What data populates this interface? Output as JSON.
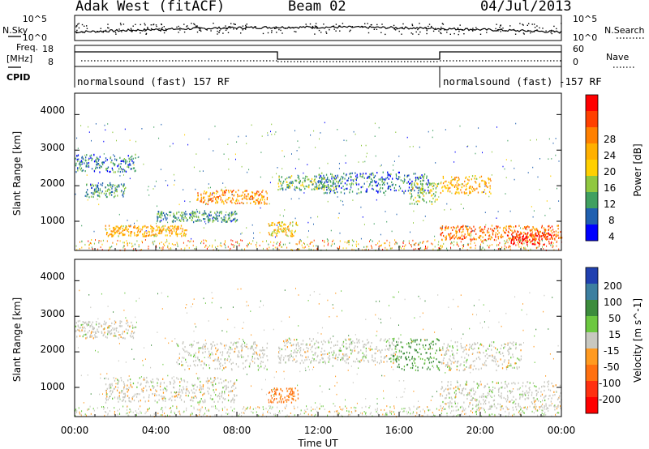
{
  "header": {
    "station": "Adak West (fitACF)",
    "beam": "Beam 02",
    "date": "04/Jul/2013"
  },
  "sky_panel": {
    "left_label": "N.Sky",
    "right_label": "N.Search",
    "left_ticks": [
      "10^5",
      "10^0"
    ],
    "right_ticks": [
      "10^5",
      "10^0"
    ]
  },
  "freq_panel": {
    "left_label_1": "Freq.",
    "left_label_2": "[MHz]",
    "left_ticks": [
      "18",
      "8"
    ],
    "right_label": "Nave",
    "right_ticks": [
      "60",
      "0"
    ],
    "cpid_label": "CPID"
  },
  "cpid_segments": [
    {
      "text": "normalsound (fast) 157 RF",
      "start": "00:00",
      "end": "18:00"
    },
    {
      "text": "normalsound (fast) -157 RF",
      "start": "18:00",
      "end": "00:00"
    }
  ],
  "time_axis": {
    "label": "Time UT",
    "ticks": [
      "00:00",
      "04:00",
      "08:00",
      "12:00",
      "16:00",
      "20:00",
      "00:00"
    ]
  },
  "chart_data": [
    {
      "type": "heatmap",
      "title": "Power",
      "xlabel": "Time UT",
      "ylabel": "Slant Range [km]",
      "yticks": [
        1000,
        2000,
        3000,
        4000
      ],
      "ylim": [
        180,
        4600
      ],
      "xlim_hours": [
        0,
        24
      ],
      "colorbar_label": "Power [dB]",
      "colorbar_ticks": [
        "28",
        "24",
        "20",
        "16",
        "12",
        "8",
        "4"
      ],
      "colorbar_colors": [
        "#ff0000",
        "#ff4000",
        "#ff8000",
        "#ffb000",
        "#ffd000",
        "#90c840",
        "#40a060",
        "#2060b0",
        "#0000ff"
      ],
      "bands": [
        {
          "t": [
            0,
            3.0
          ],
          "r": [
            2400,
            2900
          ],
          "level": 8
        },
        {
          "t": [
            0.5,
            2.5
          ],
          "r": [
            1700,
            2100
          ],
          "level": 10
        },
        {
          "t": [
            1.5,
            5.5
          ],
          "r": [
            600,
            900
          ],
          "level": 20
        },
        {
          "t": [
            4.0,
            8.0
          ],
          "r": [
            1000,
            1300
          ],
          "level": 10
        },
        {
          "t": [
            6.0,
            9.5
          ],
          "r": [
            1500,
            1900
          ],
          "level": 22
        },
        {
          "t": [
            9.5,
            11.0
          ],
          "r": [
            600,
            1000
          ],
          "level": 18
        },
        {
          "t": [
            10.0,
            13.0
          ],
          "r": [
            1900,
            2300
          ],
          "level": 12
        },
        {
          "t": [
            12.0,
            17.5
          ],
          "r": [
            1800,
            2400
          ],
          "level": 8
        },
        {
          "t": [
            16.5,
            18.0
          ],
          "r": [
            1500,
            2100
          ],
          "level": 14
        },
        {
          "t": [
            18.0,
            20.5
          ],
          "r": [
            1800,
            2300
          ],
          "level": 20
        },
        {
          "t": [
            18.0,
            24.0
          ],
          "r": [
            500,
            900
          ],
          "level": 24
        },
        {
          "t": [
            21.5,
            23.5
          ],
          "r": [
            350,
            700
          ],
          "level": 30
        }
      ]
    },
    {
      "type": "heatmap",
      "title": "Velocity",
      "xlabel": "Time UT",
      "ylabel": "Slant Range [km]",
      "yticks": [
        1000,
        2000,
        3000,
        4000
      ],
      "ylim": [
        180,
        4600
      ],
      "xlim_hours": [
        0,
        24
      ],
      "colorbar_label": "Velocity [m s^-1]",
      "colorbar_ticks": [
        "200",
        "100",
        "50",
        "15",
        "-15",
        "-50",
        "-100",
        "-200"
      ],
      "colorbar_colors": [
        "#2040b0",
        "#3c7fa0",
        "#3c8c3c",
        "#6cc840",
        "#c8c8c0",
        "#ff9a20",
        "#ff7010",
        "#ff3010",
        "#ff0000"
      ],
      "bands": [
        {
          "t": [
            0,
            3.0
          ],
          "r": [
            2400,
            2900
          ],
          "value": 0
        },
        {
          "t": [
            1.5,
            8.0
          ],
          "r": [
            600,
            1300
          ],
          "value": 0
        },
        {
          "t": [
            5.0,
            9.5
          ],
          "r": [
            1500,
            2300
          ],
          "value": 0
        },
        {
          "t": [
            9.5,
            11.0
          ],
          "r": [
            600,
            1000
          ],
          "value": -60
        },
        {
          "t": [
            10.0,
            16.0
          ],
          "r": [
            1700,
            2400
          ],
          "value": 0
        },
        {
          "t": [
            15.5,
            18.0
          ],
          "r": [
            1500,
            2400
          ],
          "value": 40
        },
        {
          "t": [
            18.0,
            24.0
          ],
          "r": [
            400,
            1200
          ],
          "value": 0
        },
        {
          "t": [
            18.0,
            22.0
          ],
          "r": [
            1500,
            2300
          ],
          "value": 0
        }
      ]
    }
  ]
}
